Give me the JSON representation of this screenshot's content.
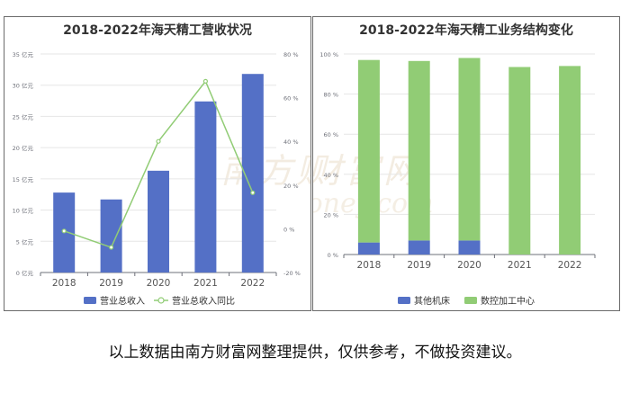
{
  "footer_note": "以上数据由南方财富网整理提供，仅供参考，不做投资建议。",
  "watermark": {
    "text_cn": "南方财富网",
    "text_en": "southmoney.com"
  },
  "colors": {
    "bar_blue": "#5470c6",
    "line_green": "#91cc75",
    "axis": "#6e7079",
    "grid": "#e6e6e6"
  },
  "chart_data": [
    {
      "type": "bar",
      "title": "2018-2022年海天精工营收状况",
      "categories": [
        "2018",
        "2019",
        "2020",
        "2021",
        "2022"
      ],
      "series": [
        {
          "name": "营业总收入",
          "type": "bar",
          "axis": "left",
          "values": [
            12.8,
            11.7,
            16.3,
            27.4,
            31.8
          ]
        },
        {
          "name": "营业总收入同比",
          "type": "line",
          "axis": "right",
          "values": [
            -1,
            -8.5,
            40,
            67.5,
            16.5
          ]
        }
      ],
      "y_left": {
        "ylim": [
          0,
          35
        ],
        "ticks": [
          "0 亿元",
          "5 亿元",
          "10 亿元",
          "15 亿元",
          "20 亿元",
          "25 亿元",
          "30 亿元",
          "35 亿元"
        ]
      },
      "y_right": {
        "ylim": [
          -20,
          80
        ],
        "ticks": [
          "-20 %",
          "0 %",
          "20 %",
          "40 %",
          "60 %",
          "80 %"
        ]
      },
      "legend_position": "bottom",
      "grid": true
    },
    {
      "type": "bar",
      "stacked": true,
      "title": "2018-2022年海天精工业务结构变化",
      "categories": [
        "2018",
        "2019",
        "2020",
        "2021",
        "2022"
      ],
      "series": [
        {
          "name": "其他机床",
          "values": [
            6,
            7,
            7,
            0,
            0
          ]
        },
        {
          "name": "数控加工中心",
          "values": [
            91,
            89.5,
            91,
            93.5,
            94
          ]
        }
      ],
      "y": {
        "ylim": [
          0,
          100
        ],
        "ticks": [
          "0 %",
          "20 %",
          "40 %",
          "60 %",
          "80 %",
          "100 %"
        ]
      },
      "legend_position": "bottom",
      "grid": true
    }
  ]
}
